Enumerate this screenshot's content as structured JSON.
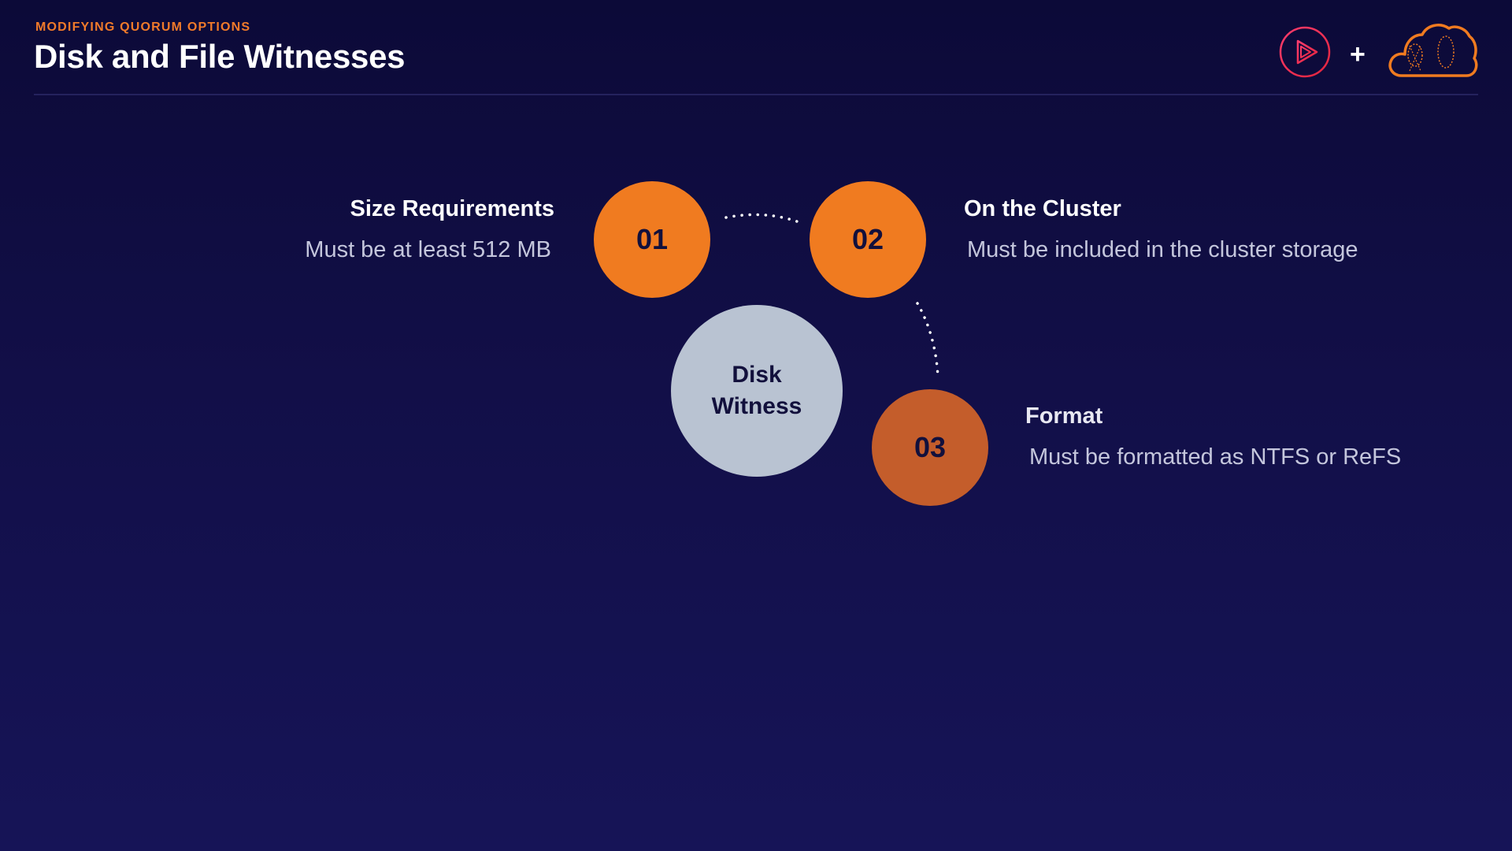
{
  "header": {
    "eyebrow": "MODIFYING QUORUM OPTIONS",
    "title": "Disk and File Witnesses",
    "plus_sign": "+",
    "logos": [
      "play-logo-icon",
      "cloud-logo-icon"
    ]
  },
  "diagram": {
    "center": {
      "line1": "Disk",
      "line2": "Witness"
    },
    "items": [
      {
        "number": "01",
        "title": "Size Requirements",
        "description": "Must be at least 512 MB"
      },
      {
        "number": "02",
        "title": "On the Cluster",
        "description": "Must be included in the cluster storage"
      },
      {
        "number": "03",
        "title": "Format",
        "description": "Must be formatted as NTFS or ReFS"
      }
    ]
  },
  "colors": {
    "accent_orange": "#f07b20",
    "accent_dark_orange": "#c45d2b",
    "center_circle": "#b9c3d2",
    "background": "#120f48"
  }
}
